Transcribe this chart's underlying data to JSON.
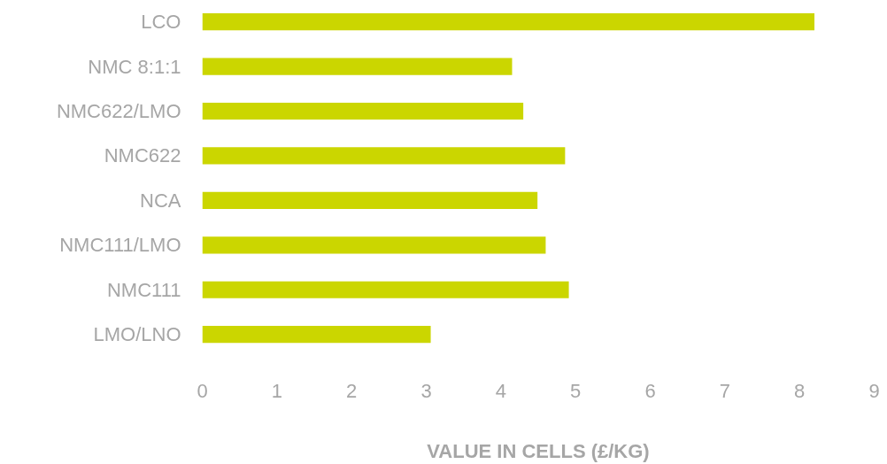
{
  "chart_data": {
    "type": "bar",
    "orientation": "horizontal",
    "categories": [
      "LCO",
      "NMC 8:1:1",
      "NMC622/LMO",
      "NMC622",
      "NCA",
      "NMC111/LMO",
      "NMC111",
      "LMO/LNO"
    ],
    "values": [
      8.2,
      4.15,
      4.3,
      4.86,
      4.49,
      4.6,
      4.91,
      3.06
    ],
    "color": "#cbd600",
    "xlabel": "VALUE IN CELLS (£/KG)",
    "xlim": [
      0,
      9
    ],
    "xticks": [
      0,
      1,
      2,
      3,
      4,
      5,
      6,
      7,
      8,
      9
    ],
    "grid": false
  }
}
